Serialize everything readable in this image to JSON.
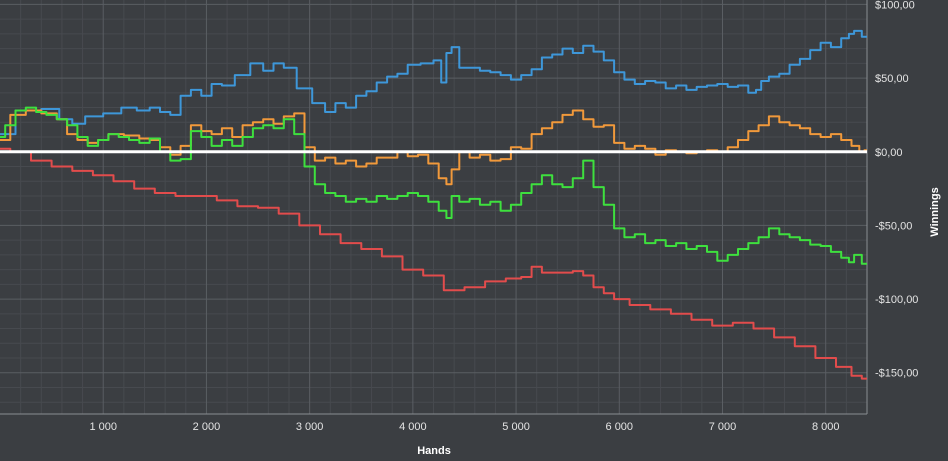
{
  "chart_data": {
    "type": "line",
    "xlabel": "Hands",
    "ylabel": "Winnings",
    "xlim": [
      0,
      8400
    ],
    "ylim": [
      -178,
      103
    ],
    "x_ticks": [
      {
        "value": 1000,
        "label": "1 000"
      },
      {
        "value": 2000,
        "label": "2 000"
      },
      {
        "value": 3000,
        "label": "3 000"
      },
      {
        "value": 4000,
        "label": "4 000"
      },
      {
        "value": 5000,
        "label": "5 000"
      },
      {
        "value": 6000,
        "label": "6 000"
      },
      {
        "value": 7000,
        "label": "7 000"
      },
      {
        "value": 8000,
        "label": "8 000"
      }
    ],
    "y_ticks": [
      {
        "value": 100,
        "label": "$100,00"
      },
      {
        "value": 50,
        "label": "$50,00"
      },
      {
        "value": 0,
        "label": "$0,00"
      },
      {
        "value": -50,
        "label": "-$50,00"
      },
      {
        "value": -100,
        "label": "-$100,00"
      },
      {
        "value": -150,
        "label": "-$150,00"
      }
    ],
    "grid": true,
    "zero_line": {
      "value": 0,
      "color": "#ffffff"
    },
    "series": [
      {
        "color": "#3e97d9",
        "points": [
          [
            0,
            12
          ],
          [
            300,
            28
          ],
          [
            500,
            29
          ],
          [
            650,
            22
          ],
          [
            750,
            19
          ],
          [
            900,
            24
          ],
          [
            1100,
            26
          ],
          [
            1250,
            30
          ],
          [
            1400,
            28
          ],
          [
            1500,
            30
          ],
          [
            1600,
            27
          ],
          [
            1700,
            25
          ],
          [
            1800,
            38
          ],
          [
            1900,
            42
          ],
          [
            2000,
            38
          ],
          [
            2100,
            46
          ],
          [
            2200,
            45
          ],
          [
            2350,
            52
          ],
          [
            2500,
            60
          ],
          [
            2600,
            55
          ],
          [
            2700,
            60
          ],
          [
            2800,
            57
          ],
          [
            2950,
            43
          ],
          [
            3100,
            33
          ],
          [
            3200,
            27
          ],
          [
            3300,
            33
          ],
          [
            3400,
            30
          ],
          [
            3500,
            38
          ],
          [
            3600,
            41
          ],
          [
            3700,
            47
          ],
          [
            3800,
            51
          ],
          [
            3900,
            53
          ],
          [
            4000,
            59
          ],
          [
            4150,
            60
          ],
          [
            4250,
            62
          ],
          [
            4300,
            47
          ],
          [
            4350,
            67
          ],
          [
            4400,
            71
          ],
          [
            4500,
            57
          ],
          [
            4600,
            57
          ],
          [
            4700,
            55
          ],
          [
            4800,
            54
          ],
          [
            4900,
            52
          ],
          [
            5000,
            49
          ],
          [
            5100,
            52
          ],
          [
            5200,
            56
          ],
          [
            5300,
            64
          ],
          [
            5400,
            66
          ],
          [
            5500,
            70
          ],
          [
            5600,
            67
          ],
          [
            5700,
            72
          ],
          [
            5800,
            68
          ],
          [
            5900,
            62
          ],
          [
            6000,
            54
          ],
          [
            6100,
            49
          ],
          [
            6200,
            46
          ],
          [
            6300,
            48
          ],
          [
            6400,
            47
          ],
          [
            6500,
            43
          ],
          [
            6600,
            45
          ],
          [
            6700,
            42
          ],
          [
            6800,
            44
          ],
          [
            6900,
            45
          ],
          [
            7000,
            46
          ],
          [
            7100,
            44
          ],
          [
            7200,
            45
          ],
          [
            7300,
            40
          ],
          [
            7350,
            42
          ],
          [
            7400,
            48
          ],
          [
            7500,
            51
          ],
          [
            7600,
            53
          ],
          [
            7700,
            59
          ],
          [
            7800,
            63
          ],
          [
            7900,
            69
          ],
          [
            8000,
            74
          ],
          [
            8100,
            71
          ],
          [
            8200,
            77
          ],
          [
            8250,
            80
          ],
          [
            8300,
            82
          ],
          [
            8400,
            78
          ]
        ]
      },
      {
        "color": "#f1993b",
        "points": [
          [
            0,
            8
          ],
          [
            200,
            25
          ],
          [
            300,
            28
          ],
          [
            500,
            26
          ],
          [
            600,
            22
          ],
          [
            700,
            12
          ],
          [
            800,
            8
          ],
          [
            900,
            6
          ],
          [
            1000,
            8
          ],
          [
            1100,
            12
          ],
          [
            1300,
            11
          ],
          [
            1400,
            9
          ],
          [
            1500,
            8
          ],
          [
            1600,
            3
          ],
          [
            1700,
            -2
          ],
          [
            1800,
            4
          ],
          [
            1900,
            18
          ],
          [
            2000,
            14
          ],
          [
            2100,
            12
          ],
          [
            2200,
            16
          ],
          [
            2300,
            10
          ],
          [
            2400,
            18
          ],
          [
            2500,
            20
          ],
          [
            2600,
            22
          ],
          [
            2700,
            19
          ],
          [
            2800,
            24
          ],
          [
            2900,
            26
          ],
          [
            3000,
            3
          ],
          [
            3100,
            -6
          ],
          [
            3200,
            -4
          ],
          [
            3300,
            -8
          ],
          [
            3400,
            -6
          ],
          [
            3500,
            -10
          ],
          [
            3600,
            -8
          ],
          [
            3700,
            -4
          ],
          [
            3800,
            -4
          ],
          [
            3900,
            0
          ],
          [
            4000,
            -3
          ],
          [
            4100,
            -2
          ],
          [
            4200,
            -8
          ],
          [
            4300,
            -18
          ],
          [
            4350,
            -22
          ],
          [
            4400,
            -12
          ],
          [
            4500,
            0
          ],
          [
            4600,
            -4
          ],
          [
            4700,
            -2
          ],
          [
            4800,
            -6
          ],
          [
            4900,
            -5
          ],
          [
            5000,
            3
          ],
          [
            5100,
            2
          ],
          [
            5200,
            12
          ],
          [
            5300,
            16
          ],
          [
            5400,
            20
          ],
          [
            5500,
            25
          ],
          [
            5600,
            28
          ],
          [
            5700,
            22
          ],
          [
            5800,
            17
          ],
          [
            5900,
            18
          ],
          [
            6000,
            6
          ],
          [
            6100,
            2
          ],
          [
            6200,
            4
          ],
          [
            6300,
            2
          ],
          [
            6400,
            -2
          ],
          [
            6500,
            1
          ],
          [
            6600,
            0
          ],
          [
            6700,
            -1
          ],
          [
            6800,
            0
          ],
          [
            6900,
            1
          ],
          [
            7000,
            0
          ],
          [
            7100,
            3
          ],
          [
            7200,
            8
          ],
          [
            7300,
            14
          ],
          [
            7400,
            18
          ],
          [
            7500,
            24
          ],
          [
            7600,
            20
          ],
          [
            7700,
            18
          ],
          [
            7800,
            16
          ],
          [
            7900,
            12
          ],
          [
            8000,
            10
          ],
          [
            8100,
            12
          ],
          [
            8200,
            8
          ],
          [
            8300,
            4
          ],
          [
            8350,
            0
          ],
          [
            8400,
            1
          ]
        ]
      },
      {
        "color": "#3ee03e",
        "points": [
          [
            0,
            10
          ],
          [
            100,
            18
          ],
          [
            200,
            28
          ],
          [
            300,
            30
          ],
          [
            400,
            27
          ],
          [
            500,
            25
          ],
          [
            600,
            22
          ],
          [
            700,
            18
          ],
          [
            800,
            10
          ],
          [
            900,
            4
          ],
          [
            1000,
            8
          ],
          [
            1100,
            12
          ],
          [
            1200,
            10
          ],
          [
            1300,
            8
          ],
          [
            1400,
            6
          ],
          [
            1500,
            9
          ],
          [
            1600,
            0
          ],
          [
            1700,
            -6
          ],
          [
            1800,
            -5
          ],
          [
            1900,
            14
          ],
          [
            2000,
            10
          ],
          [
            2100,
            4
          ],
          [
            2200,
            8
          ],
          [
            2300,
            4
          ],
          [
            2400,
            10
          ],
          [
            2500,
            16
          ],
          [
            2600,
            18
          ],
          [
            2700,
            16
          ],
          [
            2800,
            22
          ],
          [
            2900,
            12
          ],
          [
            3000,
            -10
          ],
          [
            3100,
            -22
          ],
          [
            3200,
            -28
          ],
          [
            3300,
            -30
          ],
          [
            3400,
            -34
          ],
          [
            3500,
            -32
          ],
          [
            3600,
            -34
          ],
          [
            3700,
            -30
          ],
          [
            3800,
            -32
          ],
          [
            3900,
            -30
          ],
          [
            4000,
            -28
          ],
          [
            4100,
            -30
          ],
          [
            4200,
            -34
          ],
          [
            4300,
            -40
          ],
          [
            4350,
            -45
          ],
          [
            4400,
            -30
          ],
          [
            4500,
            -34
          ],
          [
            4600,
            -32
          ],
          [
            4700,
            -36
          ],
          [
            4800,
            -34
          ],
          [
            4900,
            -40
          ],
          [
            5000,
            -36
          ],
          [
            5100,
            -28
          ],
          [
            5200,
            -22
          ],
          [
            5300,
            -16
          ],
          [
            5400,
            -22
          ],
          [
            5500,
            -24
          ],
          [
            5600,
            -18
          ],
          [
            5700,
            -6
          ],
          [
            5800,
            -24
          ],
          [
            5900,
            -36
          ],
          [
            6000,
            -52
          ],
          [
            6100,
            -58
          ],
          [
            6200,
            -56
          ],
          [
            6300,
            -62
          ],
          [
            6400,
            -60
          ],
          [
            6500,
            -64
          ],
          [
            6600,
            -62
          ],
          [
            6700,
            -66
          ],
          [
            6800,
            -64
          ],
          [
            6900,
            -68
          ],
          [
            7000,
            -74
          ],
          [
            7100,
            -70
          ],
          [
            7200,
            -66
          ],
          [
            7300,
            -62
          ],
          [
            7400,
            -58
          ],
          [
            7500,
            -52
          ],
          [
            7600,
            -56
          ],
          [
            7700,
            -58
          ],
          [
            7800,
            -60
          ],
          [
            7900,
            -63
          ],
          [
            8000,
            -64
          ],
          [
            8100,
            -68
          ],
          [
            8200,
            -72
          ],
          [
            8250,
            -75
          ],
          [
            8300,
            -70
          ],
          [
            8400,
            -76
          ]
        ]
      },
      {
        "color": "#e24c4c",
        "points": [
          [
            0,
            2
          ],
          [
            200,
            0
          ],
          [
            400,
            -6
          ],
          [
            600,
            -10
          ],
          [
            800,
            -13
          ],
          [
            1000,
            -16
          ],
          [
            1200,
            -20
          ],
          [
            1400,
            -25
          ],
          [
            1600,
            -28
          ],
          [
            1800,
            -30
          ],
          [
            2000,
            -30
          ],
          [
            2200,
            -33
          ],
          [
            2400,
            -37
          ],
          [
            2600,
            -38
          ],
          [
            2800,
            -42
          ],
          [
            3000,
            -50
          ],
          [
            3200,
            -56
          ],
          [
            3400,
            -62
          ],
          [
            3600,
            -66
          ],
          [
            3800,
            -71
          ],
          [
            4000,
            -80
          ],
          [
            4200,
            -84
          ],
          [
            4400,
            -94
          ],
          [
            4600,
            -92
          ],
          [
            4800,
            -88
          ],
          [
            5000,
            -86
          ],
          [
            5100,
            -85
          ],
          [
            5200,
            -78
          ],
          [
            5300,
            -82
          ],
          [
            5400,
            -82
          ],
          [
            5500,
            -82
          ],
          [
            5600,
            -81
          ],
          [
            5700,
            -84
          ],
          [
            5800,
            -92
          ],
          [
            5900,
            -96
          ],
          [
            6000,
            -100
          ],
          [
            6200,
            -104
          ],
          [
            6400,
            -107
          ],
          [
            6600,
            -110
          ],
          [
            6800,
            -114
          ],
          [
            7000,
            -118
          ],
          [
            7200,
            -116
          ],
          [
            7400,
            -120
          ],
          [
            7600,
            -126
          ],
          [
            7800,
            -132
          ],
          [
            8000,
            -140
          ],
          [
            8200,
            -146
          ],
          [
            8300,
            -152
          ],
          [
            8400,
            -154
          ]
        ]
      }
    ]
  }
}
